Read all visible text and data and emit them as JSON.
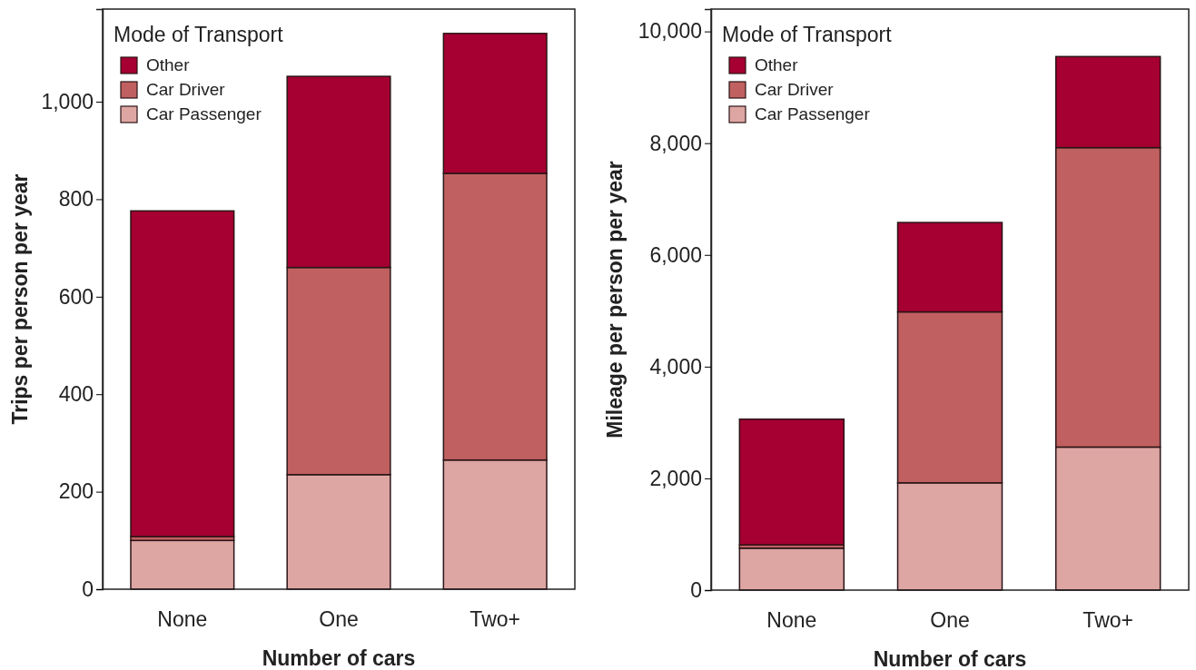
{
  "chart_data": [
    {
      "type": "bar",
      "stacked": true,
      "xlabel": "Number of cars",
      "ylabel": "Trips per person per year",
      "legend_title": "Mode of Transport",
      "legend": "top left",
      "categories": [
        "None",
        "One",
        "Two+"
      ],
      "ylim": [
        0,
        1190
      ],
      "yticks": [
        0,
        200,
        400,
        600,
        800,
        {
          "value": 1000,
          "label": "1,000"
        }
      ],
      "series": [
        {
          "name": "Car Passenger",
          "color": "#dea6a3",
          "values": [
            100,
            235,
            265
          ]
        },
        {
          "name": "Car Driver",
          "color": "#c06060",
          "values": [
            8,
            425,
            588
          ]
        },
        {
          "name": "Other",
          "color": "#a50031",
          "values": [
            668,
            392,
            287
          ]
        }
      ]
    },
    {
      "type": "bar",
      "stacked": true,
      "xlabel": "Number of cars",
      "ylabel": "Mileage per person per year",
      "legend_title": "Mode of Transport",
      "legend": "top left",
      "categories": [
        "None",
        "One",
        "Two+"
      ],
      "ylim": [
        0,
        10400
      ],
      "yticks": [
        0,
        {
          "value": 2000,
          "label": "2,000"
        },
        {
          "value": 4000,
          "label": "4,000"
        },
        {
          "value": 6000,
          "label": "6,000"
        },
        {
          "value": 8000,
          "label": "8,000"
        },
        {
          "value": 10000,
          "label": "10,000"
        }
      ],
      "series": [
        {
          "name": "Car Passenger",
          "color": "#dea6a3",
          "values": [
            750,
            1920,
            2560
          ]
        },
        {
          "name": "Car Driver",
          "color": "#c06060",
          "values": [
            60,
            3060,
            5360
          ]
        },
        {
          "name": "Other",
          "color": "#a50031",
          "values": [
            2250,
            1600,
            1630
          ]
        }
      ]
    }
  ]
}
